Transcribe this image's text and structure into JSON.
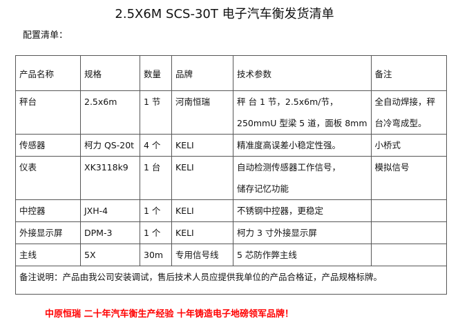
{
  "title": "2.5X6M SCS-30T 电子汽车衡发货清单",
  "subtitle": "配置清单：",
  "table": {
    "headers": [
      "产品名称",
      "规格",
      "数量",
      "品牌",
      "技术参数",
      "备注"
    ],
    "rows": [
      [
        "秤台",
        "2.5x6m",
        "1 节",
        "河南恒瑞",
        "秤 台 1 节，2.5x6m/节，",
        "全自动焊接，秤"
      ],
      [
        "",
        "",
        "",
        "",
        "250mmU 型梁 5 道，面板 8mm",
        "台冷弯成型。"
      ],
      [
        "传感器",
        "柯力 QS-20t",
        "4 个",
        "KELI",
        "精准度高误差小稳定性强。",
        "小桥式"
      ],
      [
        "仪表",
        "XK3118k9",
        "1 台",
        "KELI",
        "自动检测传感器工作信号，",
        "模拟信号"
      ],
      [
        "",
        "",
        "",
        "",
        "储存记忆功能",
        ""
      ],
      [
        "中控器",
        "JXH-4",
        "1 个",
        "KELI",
        "不锈钢中控器，更稳定",
        ""
      ],
      [
        "外接显示屏",
        "DPM-3",
        "1 个",
        "KELI",
        "柯力 3 寸外接显示屏",
        ""
      ],
      [
        "主线",
        "5X",
        "30m",
        "专用信号线",
        "5 芯防作弊主线",
        ""
      ]
    ],
    "note": "备注说明：产品由我公司安装调试，售后技术人员应提供我单位的产品合格证，产品规格标牌。"
  },
  "footer": "中原恒瑞 二十年汽车衡生产经验 十年铸造电子地磅领军品牌！",
  "colors": {
    "footer": "#ff0000",
    "border": "#555555"
  }
}
